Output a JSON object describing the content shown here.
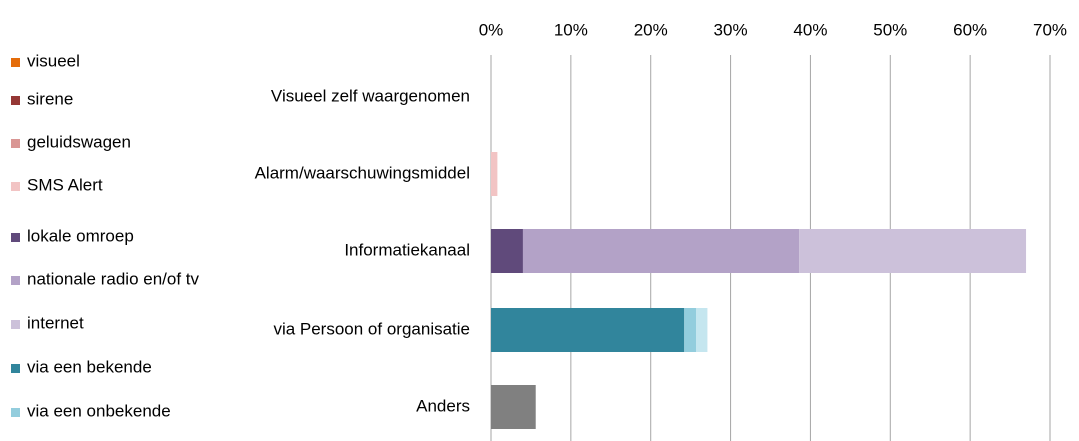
{
  "chart_data": {
    "type": "stacked-barh",
    "categories": [
      "Visueel zelf waargenomen",
      "Alarm/waarschuwingsmiddel",
      "Informatiekanaal",
      "via Persoon of organisatie",
      "Anders"
    ],
    "series": [
      {
        "name": "visueel",
        "color": "#e46c0a",
        "values": [
          0,
          0,
          0,
          0,
          0
        ]
      },
      {
        "name": "sirene",
        "color": "#953735",
        "values": [
          0,
          0,
          0,
          0,
          0
        ]
      },
      {
        "name": "geluidswagen",
        "color": "#d99694",
        "values": [
          0,
          0,
          0,
          0,
          0
        ]
      },
      {
        "name": "SMS Alert",
        "color": "#f2c4c4",
        "values": [
          0,
          0.8,
          0,
          0,
          0
        ]
      },
      {
        "name": "lokale omroep",
        "color": "#604a7b",
        "values": [
          0,
          0,
          4.0,
          0,
          0
        ]
      },
      {
        "name": "nationale radio en/of tv",
        "color": "#b3a2c7",
        "values": [
          0,
          0,
          34.6,
          0,
          0
        ]
      },
      {
        "name": "internet",
        "color": "#ccc1da",
        "values": [
          0,
          0,
          28.4,
          0,
          0
        ]
      },
      {
        "name": "via een bekende",
        "color": "#31859c",
        "values": [
          0,
          0,
          0,
          24.2,
          0
        ]
      },
      {
        "name": "via een onbekende",
        "color": "#93cddd",
        "values": [
          0,
          0,
          0,
          1.5,
          0
        ]
      },
      {
        "name": null,
        "color": "#c5e6ef",
        "values": [
          0,
          0,
          0,
          1.4,
          0
        ]
      },
      {
        "name": null,
        "color": "#808080",
        "values": [
          0,
          0,
          0,
          0,
          5.6
        ]
      }
    ],
    "xlim": [
      0,
      70
    ],
    "xticks": [
      {
        "value": 0,
        "label": "0%"
      },
      {
        "value": 10,
        "label": "10%"
      },
      {
        "value": 20,
        "label": "20%"
      },
      {
        "value": 30,
        "label": "30%"
      },
      {
        "value": 40,
        "label": "40%"
      },
      {
        "value": 50,
        "label": "50%"
      },
      {
        "value": 60,
        "label": "60%"
      },
      {
        "value": 70,
        "label": "70%"
      }
    ],
    "grid": true,
    "legend": "left"
  }
}
